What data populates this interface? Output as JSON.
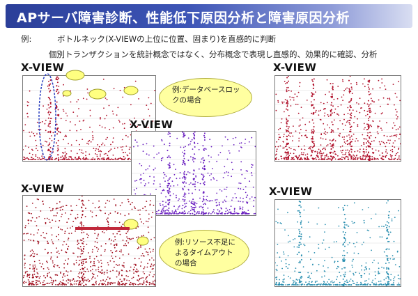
{
  "title": "APサーバ障害診断、性能低下原因分析と障害原因分析",
  "intro": {
    "label": "例:",
    "line1": "ボトルネック(X-VIEWの上位に位置、固まり)を直感的に判断",
    "line2": "個別トランザクションを統計概念ではなく、分布概念で表現し直感的、効果的に確認、分析"
  },
  "charts": [
    {
      "label": "X-VIEW",
      "point_color": "#b0102a"
    },
    {
      "label": "X-VIEW",
      "point_color": "#b0102a"
    },
    {
      "label": "X-VIEW",
      "point_color": "#6a1fc0"
    },
    {
      "label": "X-VIEW",
      "point_color": "#a01020"
    },
    {
      "label": "X-VIEW",
      "point_color": "#2a8fb0"
    }
  ],
  "callouts": {
    "db_lock": "例:データベースロックの場合",
    "timeout": "例:リソース不足によるタイムアウトの場合"
  },
  "colors": {
    "title_bar": "#2b3f99",
    "callout_fill": "#ffffa0"
  }
}
